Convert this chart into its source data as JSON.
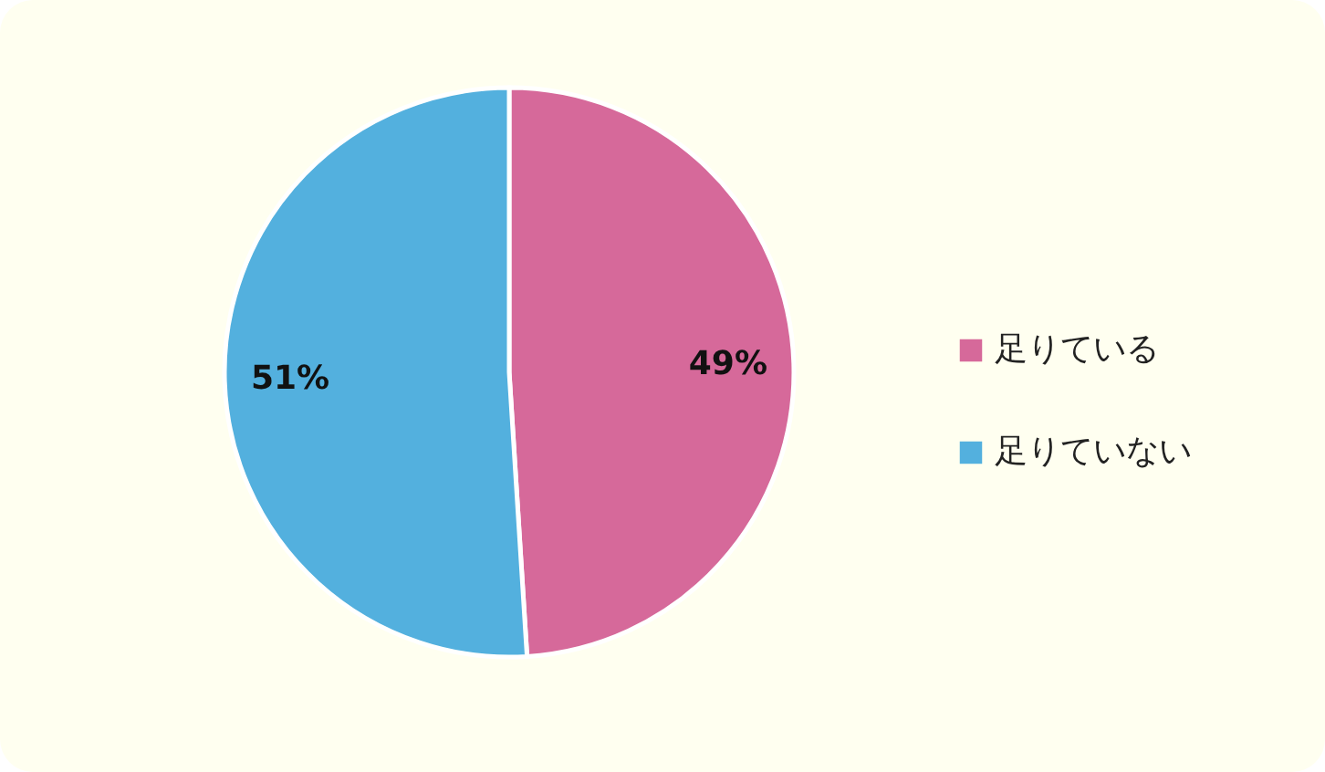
{
  "chart_data": {
    "type": "pie",
    "categories": [
      "足りている",
      "足りていない"
    ],
    "values": [
      49,
      51
    ],
    "colors": [
      "#d6699a",
      "#53b0de"
    ],
    "value_labels": [
      "49%",
      "51%"
    ],
    "legend": "right"
  }
}
